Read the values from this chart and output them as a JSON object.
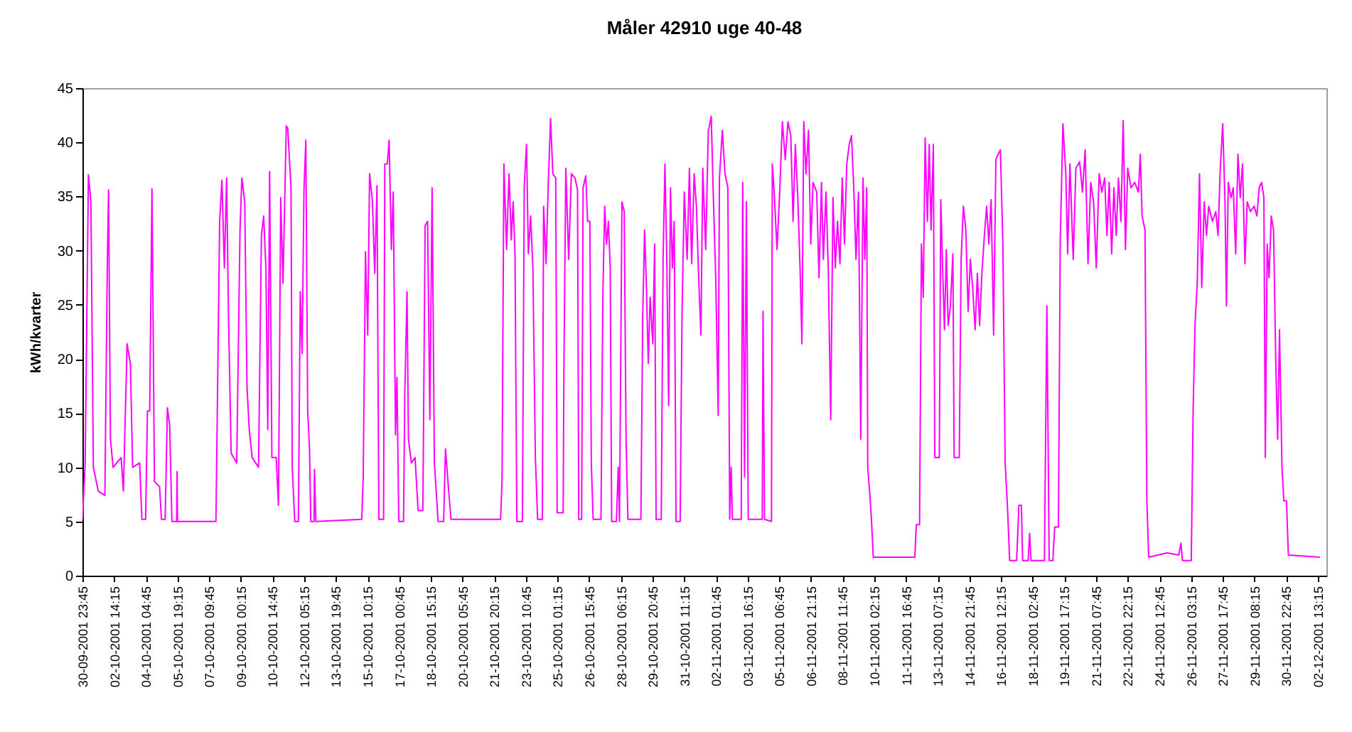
{
  "chart_data": {
    "type": "line",
    "title": "Måler 42910 uge 40-48",
    "ylabel": "kWh/kvarter",
    "xlim": [
      "2001-09-30T23:45",
      "2001-12-02T23:45"
    ],
    "ylim": [
      0,
      45
    ],
    "yticks": [
      0,
      5,
      10,
      15,
      20,
      25,
      30,
      35,
      40,
      45
    ],
    "xticks": [
      {
        "value": "2001-09-30T23:45",
        "label": "30-09-2001 23:45"
      },
      {
        "value": "2001-10-02T14:15",
        "label": "02-10-2001 14:15"
      },
      {
        "value": "2001-10-04T04:45",
        "label": "04-10-2001 04:45"
      },
      {
        "value": "2001-10-05T19:15",
        "label": "05-10-2001 19:15"
      },
      {
        "value": "2001-10-07T09:45",
        "label": "07-10-2001 09:45"
      },
      {
        "value": "2001-10-09T00:15",
        "label": "09-10-2001 00:15"
      },
      {
        "value": "2001-10-10T14:45",
        "label": "10-10-2001 14:45"
      },
      {
        "value": "2001-10-12T05:15",
        "label": "12-10-2001 05:15"
      },
      {
        "value": "2001-10-13T19:45",
        "label": "13-10-2001 19:45"
      },
      {
        "value": "2001-10-15T10:15",
        "label": "15-10-2001 10:15"
      },
      {
        "value": "2001-10-17T00:45",
        "label": "17-10-2001 00:45"
      },
      {
        "value": "2001-10-18T15:15",
        "label": "18-10-2001 15:15"
      },
      {
        "value": "2001-10-20T05:45",
        "label": "20-10-2001 05:45"
      },
      {
        "value": "2001-10-21T20:15",
        "label": "21-10-2001 20:15"
      },
      {
        "value": "2001-10-23T10:45",
        "label": "23-10-2001 10:45"
      },
      {
        "value": "2001-10-25T01:15",
        "label": "25-10-2001 01:15"
      },
      {
        "value": "2001-10-26T15:45",
        "label": "26-10-2001 15:45"
      },
      {
        "value": "2001-10-28T06:15",
        "label": "28-10-2001 06:15"
      },
      {
        "value": "2001-10-29T20:45",
        "label": "29-10-2001 20:45"
      },
      {
        "value": "2001-10-31T11:15",
        "label": "31-10-2001 11:15"
      },
      {
        "value": "2001-11-02T01:45",
        "label": "02-11-2001 01:45"
      },
      {
        "value": "2001-11-03T16:15",
        "label": "03-11-2001 16:15"
      },
      {
        "value": "2001-11-05T06:45",
        "label": "05-11-2001 06:45"
      },
      {
        "value": "2001-11-06T21:15",
        "label": "06-11-2001 21:15"
      },
      {
        "value": "2001-11-08T11:45",
        "label": "08-11-2001 11:45"
      },
      {
        "value": "2001-11-10T02:15",
        "label": "10-11-2001 02:15"
      },
      {
        "value": "2001-11-11T16:45",
        "label": "11-11-2001 16:45"
      },
      {
        "value": "2001-11-13T07:15",
        "label": "13-11-2001 07:15"
      },
      {
        "value": "2001-11-14T21:45",
        "label": "14-11-2001 21:45"
      },
      {
        "value": "2001-11-16T12:15",
        "label": "16-11-2001 12:15"
      },
      {
        "value": "2001-11-18T02:45",
        "label": "18-11-2001 02:45"
      },
      {
        "value": "2001-11-19T17:15",
        "label": "19-11-2001 17:15"
      },
      {
        "value": "2001-11-21T07:45",
        "label": "21-11-2001 07:45"
      },
      {
        "value": "2001-11-22T22:15",
        "label": "22-11-2001 22:15"
      },
      {
        "value": "2001-11-24T12:45",
        "label": "24-11-2001 12:45"
      },
      {
        "value": "2001-11-26T03:15",
        "label": "26-11-2001 03:15"
      },
      {
        "value": "2001-11-27T17:45",
        "label": "27-11-2001 17:45"
      },
      {
        "value": "2001-11-29T08:15",
        "label": "29-11-2001 08:15"
      },
      {
        "value": "2001-11-30T22:45",
        "label": "30-11-2001 22:45"
      },
      {
        "value": "2001-12-02T13:15",
        "label": "02-12-2001 13:15"
      }
    ],
    "x": [
      "2001-09-30T23:45",
      "2001-10-01T03:00",
      "2001-10-01T07:00",
      "2001-10-01T10:00",
      "2001-10-01T13:00",
      "2001-10-01T19:00",
      "2001-10-02T03:00",
      "2001-10-02T06:00",
      "2001-10-02T07:30",
      "2001-10-02T09:45",
      "2001-10-02T13:00",
      "2001-10-02T22:45",
      "2001-10-03T01:30",
      "2001-10-03T06:00",
      "2001-10-03T10:00",
      "2001-10-03T12:45",
      "2001-10-03T21:15",
      "2001-10-04T00:00",
      "2001-10-04T04:30",
      "2001-10-04T06:45",
      "2001-10-04T09:30",
      "2001-10-04T12:15",
      "2001-10-04T15:15",
      "2001-10-04T21:30",
      "2001-10-04T23:45",
      "2001-10-05T04:15",
      "2001-10-05T07:00",
      "2001-10-05T09:45",
      "2001-10-05T12:30",
      "2001-10-05T18:15",
      "2001-10-05T18:45",
      "2001-10-05T19:15",
      "2001-10-07T18:00",
      "2001-10-07T22:30",
      "2001-10-08T01:15",
      "2001-10-08T04:15",
      "2001-10-08T07:00",
      "2001-10-08T09:15",
      "2001-10-08T12:30",
      "2001-10-08T19:15",
      "2001-10-08T23:15",
      "2001-10-09T01:30",
      "2001-10-09T05:00",
      "2001-10-09T07:45",
      "2001-10-09T10:30",
      "2001-10-09T14:00",
      "2001-10-09T21:45",
      "2001-10-10T01:15",
      "2001-10-10T04:00",
      "2001-10-10T06:45",
      "2001-10-10T09:00",
      "2001-10-10T11:15",
      "2001-10-10T14:00",
      "2001-10-10T19:15",
      "2001-10-10T22:00",
      "2001-10-11T00:45",
      "2001-10-11T03:30",
      "2001-10-11T07:30",
      "2001-10-11T09:15",
      "2001-10-11T13:15",
      "2001-10-11T14:45",
      "2001-10-11T17:45",
      "2001-10-11T22:15",
      "2001-10-12T00:30",
      "2001-10-12T02:45",
      "2001-10-12T05:00",
      "2001-10-12T07:15",
      "2001-10-12T09:30",
      "2001-10-12T11:45",
      "2001-10-12T13:15",
      "2001-10-12T17:15",
      "2001-10-12T17:45",
      "2001-10-12T19:30",
      "2001-10-15T03:15",
      "2001-10-15T05:00",
      "2001-10-15T07:45",
      "2001-10-15T10:30",
      "2001-10-15T12:45",
      "2001-10-15T16:15",
      "2001-10-15T19:00",
      "2001-10-15T21:45",
      "2001-10-16T00:00",
      "2001-10-16T05:45",
      "2001-10-16T07:15",
      "2001-10-16T10:15",
      "2001-10-16T12:30",
      "2001-10-16T15:15",
      "2001-10-16T17:30",
      "2001-10-16T20:15",
      "2001-10-16T22:00",
      "2001-10-17T00:15",
      "2001-10-17T06:00",
      "2001-10-17T07:30",
      "2001-10-17T10:15",
      "2001-10-17T12:00",
      "2001-10-17T15:30",
      "2001-10-17T20:00",
      "2001-10-17T23:45",
      "2001-10-18T05:30",
      "2001-10-18T08:15",
      "2001-10-18T11:15",
      "2001-10-18T14:00",
      "2001-10-18T16:45",
      "2001-10-18T19:30",
      "2001-10-18T21:45",
      "2001-10-19T00:00",
      "2001-10-19T06:45",
      "2001-10-19T09:00",
      "2001-10-19T12:30",
      "2001-10-19T15:45",
      "2001-10-22T04:00",
      "2001-10-22T05:45",
      "2001-10-22T08:00",
      "2001-10-22T11:15",
      "2001-10-22T14:15",
      "2001-10-22T17:00",
      "2001-10-22T19:15",
      "2001-10-22T21:30",
      "2001-10-22T23:45",
      "2001-10-23T06:30",
      "2001-10-23T08:45",
      "2001-10-23T11:30",
      "2001-10-23T13:45",
      "2001-10-23T16:30",
      "2001-10-23T19:15",
      "2001-10-23T22:15",
      "2001-10-24T01:00",
      "2001-10-24T06:45",
      "2001-10-24T08:15",
      "2001-10-24T11:15",
      "2001-10-24T14:00",
      "2001-10-24T16:45",
      "2001-10-24T19:30",
      "2001-10-24T23:00",
      "2001-10-25T00:45",
      "2001-10-25T08:00",
      "2001-10-25T09:00",
      "2001-10-25T11:15",
      "2001-10-25T14:45",
      "2001-10-25T18:00",
      "2001-10-25T22:30",
      "2001-10-26T01:30",
      "2001-10-26T03:00",
      "2001-10-26T06:30",
      "2001-10-26T08:15",
      "2001-10-26T11:30",
      "2001-10-26T13:45",
      "2001-10-26T16:30",
      "2001-10-26T18:15",
      "2001-10-26T20:30",
      "2001-10-27T06:00",
      "2001-10-27T08:15",
      "2001-10-27T10:30",
      "2001-10-27T12:45",
      "2001-10-27T15:00",
      "2001-10-27T17:15",
      "2001-10-27T19:00",
      "2001-10-28T00:45",
      "2001-10-28T03:00",
      "2001-10-28T04:30",
      "2001-10-28T07:30",
      "2001-10-28T10:15",
      "2001-10-28T12:30",
      "2001-10-28T14:45",
      "2001-10-29T06:30",
      "2001-10-29T08:45",
      "2001-10-29T11:00",
      "2001-10-29T13:15",
      "2001-10-29T15:30",
      "2001-10-29T17:45",
      "2001-10-29T21:00",
      "2001-10-29T23:15",
      "2001-10-30T01:00",
      "2001-10-30T07:15",
      "2001-10-30T09:30",
      "2001-10-30T11:45",
      "2001-10-30T14:00",
      "2001-10-30T16:15",
      "2001-10-30T18:30",
      "2001-10-30T20:45",
      "2001-10-30T23:00",
      "2001-10-31T01:15",
      "2001-10-31T06:15",
      "2001-10-31T08:30",
      "2001-10-31T11:15",
      "2001-10-31T14:45",
      "2001-10-31T17:30",
      "2001-10-31T20:15",
      "2001-10-31T23:15",
      "2001-11-01T02:00",
      "2001-11-01T04:45",
      "2001-11-01T07:30",
      "2001-11-01T09:45",
      "2001-11-01T13:15",
      "2001-11-01T16:30",
      "2001-11-01T17:15",
      "2001-11-01T20:00",
      "2001-11-01T22:45",
      "2001-11-02T01:30",
      "2001-11-02T04:30",
      "2001-11-02T06:00",
      "2001-11-02T09:30",
      "2001-11-02T12:45",
      "2001-11-02T16:15",
      "2001-11-02T18:30",
      "2001-11-02T20:15",
      "2001-11-02T21:45",
      "2001-11-03T08:30",
      "2001-11-03T10:15",
      "2001-11-03T12:30",
      "2001-11-03T14:45",
      "2001-11-03T17:00",
      "2001-11-04T10:00",
      "2001-11-04T11:00",
      "2001-11-04T12:45",
      "2001-11-04T21:15",
      "2001-11-04T22:15",
      "2001-11-05T00:30",
      "2001-11-05T04:00",
      "2001-11-05T07:15",
      "2001-11-05T10:30",
      "2001-11-05T14:00",
      "2001-11-05T17:15",
      "2001-11-05T20:45",
      "2001-11-05T23:30",
      "2001-11-06T02:15",
      "2001-11-06T05:15",
      "2001-11-06T08:00",
      "2001-11-06T10:15",
      "2001-11-06T12:30",
      "2001-11-06T15:15",
      "2001-11-06T18:15",
      "2001-11-06T21:00",
      "2001-11-06T23:45",
      "2001-11-07T04:15",
      "2001-11-07T07:00",
      "2001-11-07T10:00",
      "2001-11-07T12:15",
      "2001-11-07T15:30",
      "2001-11-07T18:15",
      "2001-11-07T21:15",
      "2001-11-08T00:00",
      "2001-11-08T02:45",
      "2001-11-08T05:30",
      "2001-11-08T08:30",
      "2001-11-08T11:15",
      "2001-11-08T14:00",
      "2001-11-08T16:45",
      "2001-11-08T19:45",
      "2001-11-08T22:30",
      "2001-11-09T01:15",
      "2001-11-09T04:00",
      "2001-11-09T07:00",
      "2001-11-09T09:45",
      "2001-11-09T12:30",
      "2001-11-09T14:45",
      "2001-11-09T17:00",
      "2001-11-09T18:15",
      "2001-11-09T20:30",
      "2001-11-09T22:45",
      "2001-11-10T01:00",
      "2001-11-12T03:30",
      "2001-11-12T05:15",
      "2001-11-12T09:15",
      "2001-11-12T11:30",
      "2001-11-12T13:45",
      "2001-11-12T16:00",
      "2001-11-12T18:45",
      "2001-11-12T21:00",
      "2001-11-12T23:15",
      "2001-11-13T02:00",
      "2001-11-13T03:45",
      "2001-11-13T09:15",
      "2001-11-13T11:00",
      "2001-11-13T13:15",
      "2001-11-13T15:30",
      "2001-11-13T17:45",
      "2001-11-13T20:00",
      "2001-11-13T22:45",
      "2001-11-14T01:45",
      "2001-11-14T03:15",
      "2001-11-14T09:30",
      "2001-11-14T11:45",
      "2001-11-14T14:30",
      "2001-11-14T17:30",
      "2001-11-14T20:15",
      "2001-11-14T23:00",
      "2001-11-15T01:45",
      "2001-11-15T04:45",
      "2001-11-15T07:30",
      "2001-11-15T10:15",
      "2001-11-15T13:00",
      "2001-11-15T16:00",
      "2001-11-15T18:45",
      "2001-11-15T21:30",
      "2001-11-16T00:15",
      "2001-11-16T03:15",
      "2001-11-16T06:00",
      "2001-11-16T08:45",
      "2001-11-16T11:30",
      "2001-11-16T14:30",
      "2001-11-16T17:15",
      "2001-11-16T20:00",
      "2001-11-16T22:45",
      "2001-11-17T07:15",
      "2001-11-17T10:00",
      "2001-11-17T13:00",
      "2001-11-17T14:30",
      "2001-11-17T21:15",
      "2001-11-17T23:00",
      "2001-11-18T00:45",
      "2001-11-18T17:00",
      "2001-11-18T20:00",
      "2001-11-18T22:45",
      "2001-11-19T03:15",
      "2001-11-19T05:30",
      "2001-11-19T10:00",
      "2001-11-19T12:15",
      "2001-11-19T15:30",
      "2001-11-19T19:00",
      "2001-11-19T21:15",
      "2001-11-20T00:00",
      "2001-11-20T04:00",
      "2001-11-20T07:15",
      "2001-11-20T11:45",
      "2001-11-20T15:15",
      "2001-11-20T18:30",
      "2001-11-20T22:00",
      "2001-11-21T01:15",
      "2001-11-21T04:45",
      "2001-11-21T08:00",
      "2001-11-21T11:30",
      "2001-11-21T14:45",
      "2001-11-21T18:15",
      "2001-11-21T21:00",
      "2001-11-21T23:45",
      "2001-11-22T02:45",
      "2001-11-22T05:30",
      "2001-11-22T08:15",
      "2001-11-22T11:00",
      "2001-11-22T14:00",
      "2001-11-22T16:45",
      "2001-11-22T19:30",
      "2001-11-22T22:15",
      "2001-11-23T02:15",
      "2001-11-23T06:45",
      "2001-11-23T11:15",
      "2001-11-23T13:30",
      "2001-11-23T15:45",
      "2001-11-23T19:15",
      "2001-11-23T21:30",
      "2001-11-23T23:45",
      "2001-11-24T22:15",
      "2001-11-25T12:15",
      "2001-11-25T15:00",
      "2001-11-25T16:45",
      "2001-11-26T03:30",
      "2001-11-26T05:45",
      "2001-11-26T08:00",
      "2001-11-26T10:45",
      "2001-11-26T13:30",
      "2001-11-26T16:15",
      "2001-11-26T19:15",
      "2001-11-26T22:00",
      "2001-11-27T00:45",
      "2001-11-27T05:15",
      "2001-11-27T09:15",
      "2001-11-27T12:00",
      "2001-11-27T14:45",
      "2001-11-27T17:45",
      "2001-11-27T20:30",
      "2001-11-27T22:15",
      "2001-11-28T00:30",
      "2001-11-28T03:45",
      "2001-11-28T06:30",
      "2001-11-28T09:30",
      "2001-11-28T12:15",
      "2001-11-28T15:00",
      "2001-11-28T17:45",
      "2001-11-28T20:45",
      "2001-11-28T23:30",
      "2001-11-29T03:30",
      "2001-11-29T08:00",
      "2001-11-29T11:15",
      "2001-11-29T14:00",
      "2001-11-29T17:00",
      "2001-11-29T19:45",
      "2001-11-29T21:30",
      "2001-11-29T23:45",
      "2001-11-30T02:00",
      "2001-11-30T04:45",
      "2001-11-30T07:30",
      "2001-11-30T10:15",
      "2001-11-30T12:30",
      "2001-11-30T14:45",
      "2001-11-30T17:45",
      "2001-11-30T20:00",
      "2001-11-30T23:15",
      "2001-12-01T01:30",
      "2001-12-02T15:45"
    ],
    "series": [
      {
        "color": "#ff00ff",
        "values": [
          5.2,
          10.2,
          37,
          34.5,
          10,
          7.8,
          7.4,
          29,
          35.6,
          12.6,
          10,
          10.9,
          7.8,
          21.4,
          19.6,
          10,
          10.4,
          5.2,
          5.2,
          15.2,
          15.2,
          35.7,
          8.7,
          8.2,
          5.2,
          5.2,
          15.5,
          13.9,
          5,
          5,
          9.6,
          5,
          5,
          32.7,
          36.5,
          28.4,
          36.7,
          24,
          11.3,
          10.4,
          31.9,
          36.7,
          34.5,
          17.4,
          13.5,
          10.9,
          10,
          31.4,
          33.2,
          28.4,
          13.5,
          37.3,
          10.9,
          10.9,
          6.5,
          34.9,
          27,
          41.5,
          41.3,
          35.8,
          10,
          5,
          5,
          26.2,
          20.5,
          35.6,
          40.2,
          15.2,
          11.7,
          5,
          5,
          9.8,
          5,
          5.2,
          9.1,
          29.9,
          22.2,
          37.1,
          34.5,
          27.9,
          36,
          5.2,
          5.2,
          38,
          38,
          40.2,
          30.1,
          35.4,
          13,
          18.3,
          5,
          5,
          16.5,
          26.2,
          12.6,
          10.4,
          10.9,
          6,
          6,
          32.3,
          32.7,
          14.4,
          35.8,
          10.4,
          7.8,
          5,
          5,
          11.7,
          8.2,
          5.2,
          5.2,
          8.7,
          38,
          30.1,
          37.1,
          31,
          34.5,
          29.7,
          5,
          5,
          36,
          39.8,
          29.7,
          33.2,
          28.4,
          10.9,
          5.2,
          5.2,
          34.1,
          28.8,
          36.3,
          42.2,
          37.1,
          36.7,
          5.8,
          5.8,
          19.6,
          37.6,
          29.2,
          37.1,
          36.7,
          35.6,
          5.2,
          5.2,
          35.8,
          36.9,
          32.7,
          32.7,
          10.4,
          5.2,
          5.2,
          25.7,
          34.1,
          30.6,
          32.7,
          28.4,
          5,
          5,
          10,
          5,
          34.5,
          33.6,
          12.6,
          5.2,
          5.2,
          24,
          31.9,
          26.6,
          19.6,
          25.7,
          21.4,
          30.6,
          5.2,
          5.2,
          29.2,
          38,
          29.2,
          15.7,
          35.8,
          28.4,
          32.7,
          5,
          5,
          24,
          35.4,
          29.2,
          37.6,
          28.8,
          37.1,
          34.1,
          27.5,
          22.2,
          37.6,
          30.1,
          41.1,
          41.3,
          42.4,
          34.5,
          27.5,
          14.8,
          36.7,
          41.1,
          37.1,
          35.8,
          5.2,
          10,
          5.2,
          5.2,
          36.3,
          9.1,
          34.5,
          5.2,
          5.2,
          24.4,
          5.2,
          5,
          38,
          35.4,
          30.1,
          35.4,
          41.9,
          38.4,
          41.9,
          40.6,
          32.7,
          39.8,
          34.9,
          28.4,
          21.4,
          41.9,
          37.1,
          41.1,
          30.6,
          36.3,
          35.4,
          27.5,
          36.3,
          29.2,
          35.4,
          28.4,
          14.4,
          34.9,
          28.4,
          32.7,
          28.8,
          36.7,
          30.6,
          38,
          39.8,
          40.6,
          35.8,
          29.2,
          35.4,
          12.6,
          36.7,
          29.2,
          35.8,
          10,
          7.8,
          5.2,
          1.7,
          1.7,
          4.7,
          4.7,
          30.6,
          25.7,
          40.4,
          32.7,
          39.8,
          31.9,
          39.8,
          10.9,
          10.9,
          34.7,
          28.4,
          22.7,
          30.1,
          23.1,
          24.9,
          29.7,
          10.9,
          10.9,
          29.2,
          34.1,
          31.9,
          24.4,
          29.2,
          26.6,
          22.7,
          27.9,
          23.1,
          27.9,
          31.4,
          34.1,
          30.6,
          34.7,
          22.2,
          38.4,
          38.9,
          39.3,
          30.6,
          10.4,
          6.5,
          1.4,
          1.4,
          6.5,
          6.5,
          1.4,
          1.4,
          3.9,
          1.4,
          1.4,
          24.9,
          1.4,
          1.4,
          4.5,
          4.5,
          31,
          41.7,
          37.1,
          29.7,
          38,
          29.2,
          37.6,
          38.2,
          35.4,
          39.3,
          28.8,
          36.3,
          34.5,
          28.4,
          37.1,
          35.4,
          36.7,
          31.4,
          36.3,
          29.7,
          35.8,
          31.4,
          36.7,
          32.7,
          42,
          30.1,
          37.6,
          35.8,
          36.3,
          35.4,
          38.9,
          33.2,
          31.9,
          6.9,
          1.7,
          2.1,
          1.9,
          3,
          1.4,
          1.4,
          15.2,
          23.1,
          27,
          37.1,
          26.6,
          34.5,
          31.4,
          34.1,
          32.7,
          33.6,
          31.4,
          37.6,
          41.7,
          34.5,
          24.9,
          36.3,
          34.9,
          35.8,
          29.7,
          38.9,
          34.9,
          38,
          28.8,
          34.5,
          33.6,
          34.1,
          33.2,
          35.8,
          36.3,
          34.9,
          10.9,
          30.6,
          27.5,
          33.2,
          31.9,
          19.6,
          12.6,
          22.7,
          10,
          6.9,
          6.9,
          1.9,
          1.7
        ]
      }
    ]
  }
}
